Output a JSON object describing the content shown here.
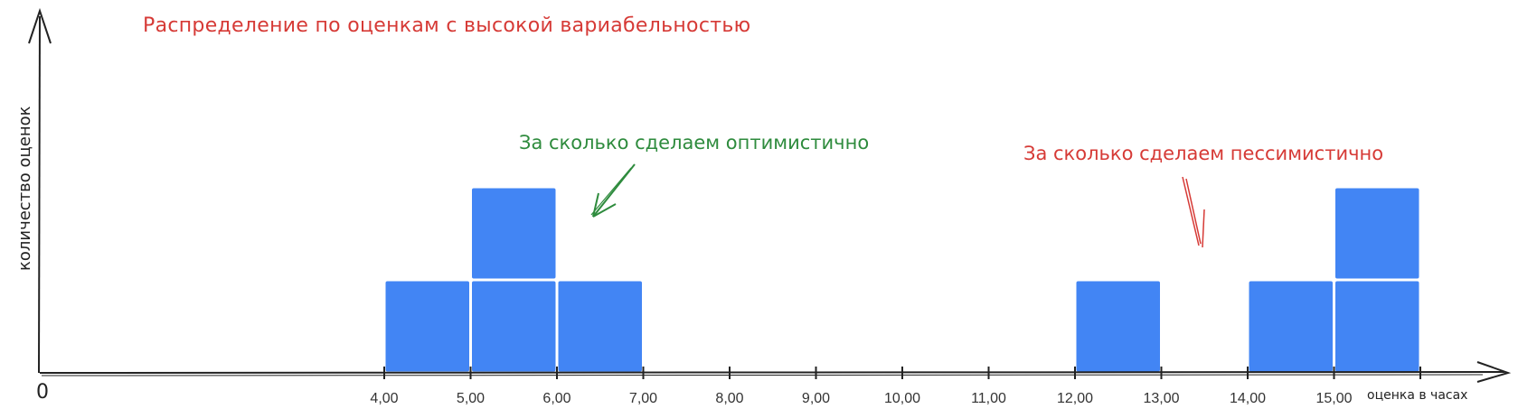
{
  "chart_data": {
    "type": "bar",
    "title": "Распределение по оценкам с высокой вариабельностью",
    "xlabel": "оценка в часах",
    "ylabel": "количество оценок",
    "origin_label": "0",
    "x_ticks": [
      "4,00",
      "5,00",
      "6,00",
      "7,00",
      "8,00",
      "9,00",
      "10,00",
      "11,00",
      "12,00",
      "13,00",
      "14,00",
      "15,00"
    ],
    "x_tick_values": [
      4,
      5,
      6,
      7,
      8,
      9,
      10,
      11,
      12,
      13,
      14,
      15
    ],
    "xlim": [
      0,
      16
    ],
    "ylim": [
      0,
      2
    ],
    "bins": [
      {
        "from": 4,
        "to": 5,
        "count": 1
      },
      {
        "from": 5,
        "to": 6,
        "count": 2
      },
      {
        "from": 6,
        "to": 7,
        "count": 1
      },
      {
        "from": 12,
        "to": 13,
        "count": 1
      },
      {
        "from": 14,
        "to": 15,
        "count": 1
      },
      {
        "from": 15,
        "to": 16,
        "count": 2
      }
    ],
    "bar_color": "#4285f4",
    "annotations": [
      {
        "text": "За сколько сделаем оптимистично",
        "color": "#2e8b3d"
      },
      {
        "text": "За сколько сделаем пессимистично",
        "color": "#d63a36"
      }
    ]
  }
}
